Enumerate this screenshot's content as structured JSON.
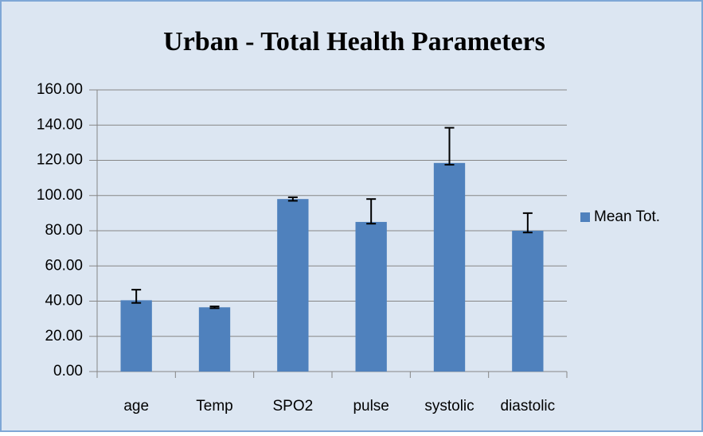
{
  "chart_data": {
    "type": "bar",
    "title": "Urban - Total Health Parameters",
    "categories": [
      "age",
      "Temp",
      "SPO2",
      "pulse",
      "systolic",
      "diastolic"
    ],
    "series": [
      {
        "name": "Mean Tot.",
        "color": "#4f81bd",
        "values": [
          40.5,
          36.5,
          98,
          85,
          118.5,
          80
        ],
        "error_plus": [
          6,
          0.5,
          1,
          13,
          20,
          10
        ],
        "error_minus": [
          1.5,
          0.5,
          1,
          1,
          1,
          1
        ]
      }
    ],
    "ylim": [
      0,
      160
    ],
    "yticks": [
      {
        "value": 0,
        "label": "0.00"
      },
      {
        "value": 20,
        "label": "20.00"
      },
      {
        "value": 40,
        "label": "40.00"
      },
      {
        "value": 60,
        "label": "60.00"
      },
      {
        "value": 80,
        "label": "80.00"
      },
      {
        "value": 100,
        "label": "100.00"
      },
      {
        "value": 120,
        "label": "120.00"
      },
      {
        "value": 140,
        "label": "140.00"
      },
      {
        "value": 160,
        "label": "160.00"
      }
    ],
    "grid": true,
    "legend": "right"
  }
}
